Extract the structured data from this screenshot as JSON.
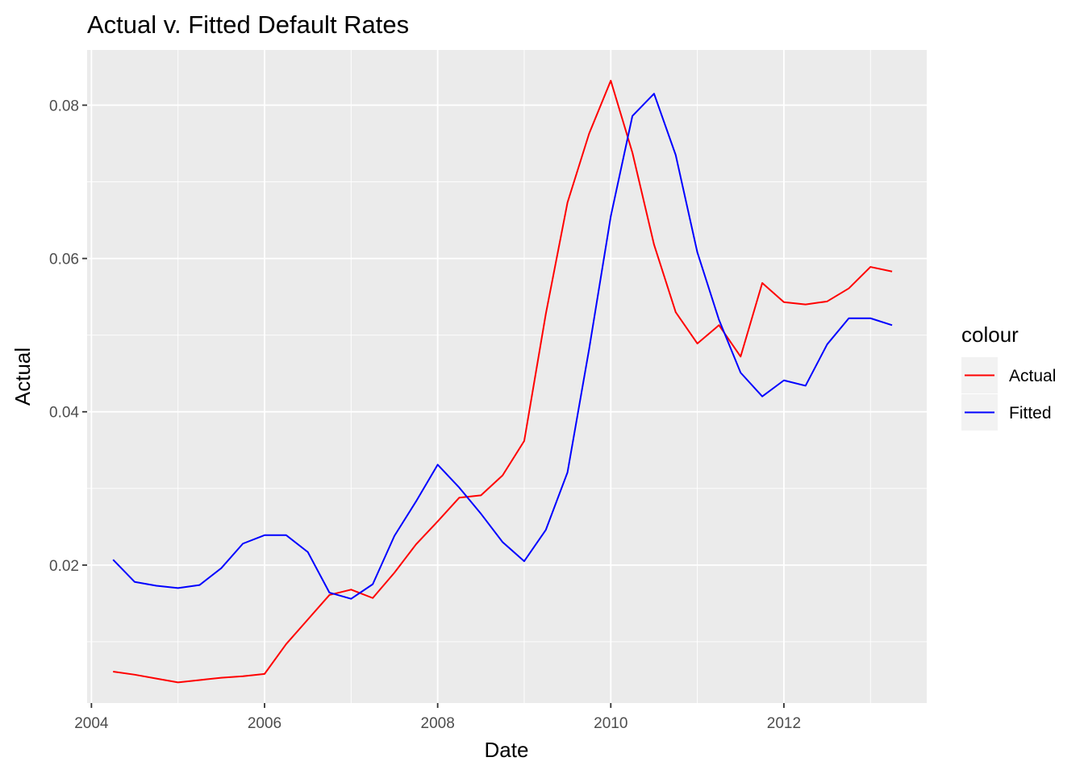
{
  "chart_data": {
    "type": "line",
    "title": "Actual v. Fitted Default Rates",
    "xlabel": "Date",
    "ylabel": "Actual",
    "x_ticks": [
      2004,
      2006,
      2008,
      2010,
      2012
    ],
    "x_tick_labels": [
      "2004",
      "2006",
      "2008",
      "2010",
      "2012"
    ],
    "y_ticks": [
      0.02,
      0.04,
      0.06,
      0.08
    ],
    "y_tick_labels": [
      "0.02",
      "0.04",
      "0.06",
      "0.08"
    ],
    "xlim": [
      2003.95,
      2013.65
    ],
    "ylim": [
      0.002,
      0.0872
    ],
    "grid": true,
    "legend": {
      "title": "colour",
      "position": "right",
      "entries": [
        "Actual",
        "Fitted"
      ]
    },
    "x": [
      2004.25,
      2004.5,
      2004.75,
      2005.0,
      2005.25,
      2005.5,
      2005.75,
      2006.0,
      2006.25,
      2006.5,
      2006.75,
      2007.0,
      2007.25,
      2007.5,
      2007.75,
      2008.0,
      2008.25,
      2008.5,
      2008.75,
      2009.0,
      2009.25,
      2009.5,
      2009.75,
      2010.0,
      2010.25,
      2010.5,
      2010.75,
      2011.0,
      2011.25,
      2011.5,
      2011.75,
      2012.0,
      2012.25,
      2012.5,
      2012.75,
      2013.0,
      2013.25
    ],
    "series": [
      {
        "name": "Actual",
        "color": "#ff0000",
        "values": [
          0.0061,
          0.0057,
          0.0052,
          0.0047,
          0.005,
          0.0053,
          0.0055,
          0.0058,
          0.0097,
          0.0129,
          0.0161,
          0.0168,
          0.0157,
          0.019,
          0.0227,
          0.0257,
          0.0288,
          0.0291,
          0.0317,
          0.0362,
          0.0528,
          0.0673,
          0.0763,
          0.0832,
          0.0738,
          0.0618,
          0.053,
          0.0489,
          0.0513,
          0.0472,
          0.0568,
          0.0543,
          0.054,
          0.0544,
          0.0561,
          0.0589,
          0.0583
        ]
      },
      {
        "name": "Fitted",
        "color": "#0000ff",
        "values": [
          0.0207,
          0.0178,
          0.0173,
          0.017,
          0.0174,
          0.0196,
          0.0228,
          0.0239,
          0.0239,
          0.0217,
          0.0164,
          0.0156,
          0.0175,
          0.0238,
          0.0283,
          0.0331,
          0.0301,
          0.0267,
          0.023,
          0.0205,
          0.0246,
          0.0321,
          0.0482,
          0.0655,
          0.0786,
          0.0815,
          0.0735,
          0.0608,
          0.052,
          0.0451,
          0.042,
          0.0441,
          0.0434,
          0.0488,
          0.0522,
          0.0522,
          0.0513
        ]
      }
    ]
  }
}
